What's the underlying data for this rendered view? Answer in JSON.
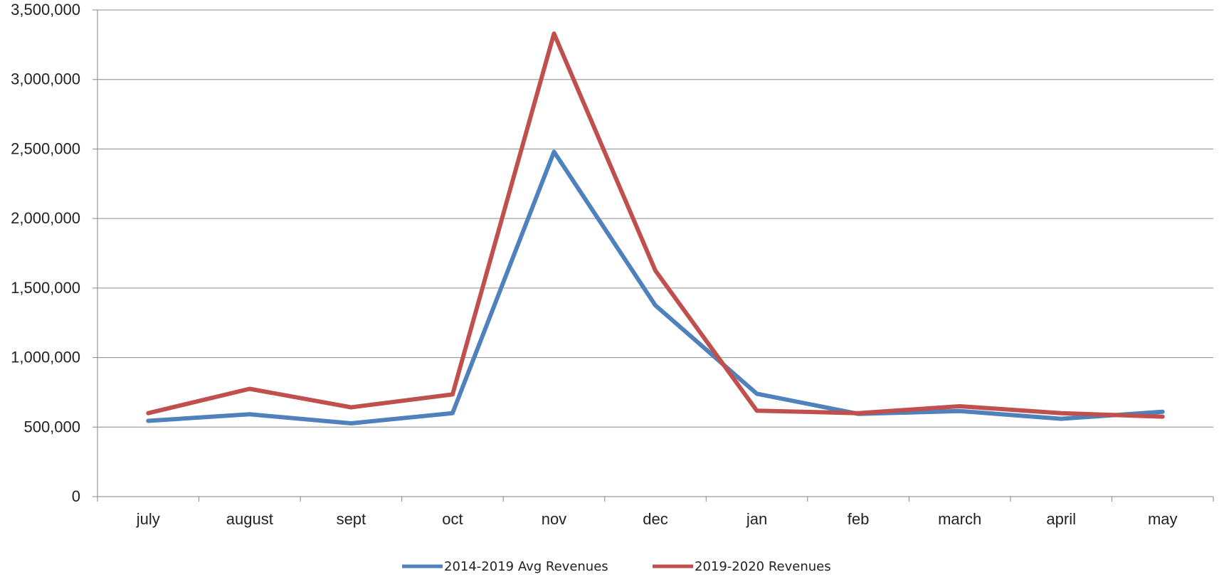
{
  "chart_data": {
    "type": "line",
    "title": "",
    "xlabel": "",
    "ylabel": "",
    "categories": [
      "july",
      "august",
      "sept",
      "oct",
      "nov",
      "dec",
      "jan",
      "feb",
      "march",
      "april",
      "may"
    ],
    "series": [
      {
        "name": "2014-2019 Avg Revenues",
        "color": "#4F81BD",
        "values": [
          545000,
          592000,
          527000,
          600000,
          2480000,
          1375000,
          740000,
          595000,
          615000,
          560000,
          610000
        ]
      },
      {
        "name": "2019-2020 Revenues",
        "color": "#C0504D",
        "values": [
          600000,
          775000,
          642000,
          735000,
          3330000,
          1625000,
          618000,
          600000,
          650000,
          600000,
          575000
        ]
      }
    ],
    "ylim": [
      0,
      3500000
    ],
    "yticks": [
      0,
      500000,
      1000000,
      1500000,
      2000000,
      2500000,
      3000000,
      3500000
    ],
    "ytick_labels": [
      "0",
      "500,000",
      "1,000,000",
      "1,500,000",
      "2,000,000",
      "2,500,000",
      "3,000,000",
      "3,500,000"
    ],
    "grid": true,
    "legend_position": "bottom"
  }
}
